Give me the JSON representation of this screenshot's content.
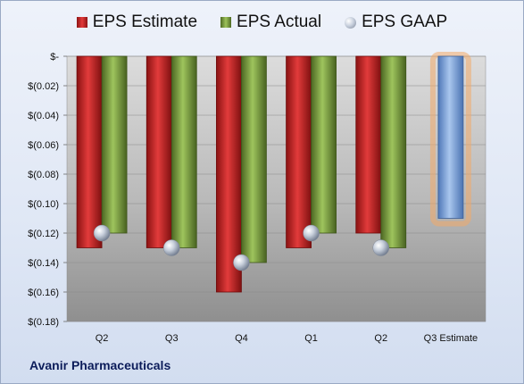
{
  "company": "Avanir Pharmaceuticals",
  "legend": [
    {
      "label": "EPS Estimate",
      "icon": "red-square-icon",
      "color": "#c62828"
    },
    {
      "label": "EPS Actual",
      "icon": "green-square-icon",
      "color": "#7ea13f"
    },
    {
      "label": "EPS GAAP",
      "icon": "gray-ball-icon",
      "color": "#b7bfcc"
    }
  ],
  "chart_data": {
    "type": "bar",
    "title": "",
    "xlabel": "",
    "ylabel": "",
    "categories": [
      "Q2",
      "Q3",
      "Q4",
      "Q1",
      "Q2",
      "Q3 Estimate"
    ],
    "series": [
      {
        "name": "EPS Estimate",
        "values": [
          -0.13,
          -0.13,
          -0.16,
          -0.13,
          -0.12,
          null
        ],
        "color": "#c62828"
      },
      {
        "name": "EPS Actual",
        "values": [
          -0.12,
          -0.13,
          -0.14,
          -0.12,
          -0.13,
          null
        ],
        "color": "#7ea13f"
      },
      {
        "name": "EPS GAAP",
        "values": [
          -0.12,
          -0.13,
          -0.14,
          -0.12,
          -0.13,
          null
        ],
        "color": "#b7bfcc"
      }
    ],
    "estimate": {
      "category": "Q3 Estimate",
      "value": -0.11,
      "color": "#6f9bd6",
      "glow": "#f3a968"
    },
    "ylim": [
      -0.18,
      0
    ],
    "yticks": [
      0,
      -0.02,
      -0.04,
      -0.06,
      -0.08,
      -0.1,
      -0.12,
      -0.14,
      -0.16,
      -0.18
    ],
    "ytick_labels": [
      "$-",
      "$(0.02)",
      "$(0.04)",
      "$(0.06)",
      "$(0.08)",
      "$(0.10)",
      "$(0.12)",
      "$(0.14)",
      "$(0.16)",
      "$(0.18)"
    ],
    "grid": true,
    "legend_position": "top"
  }
}
